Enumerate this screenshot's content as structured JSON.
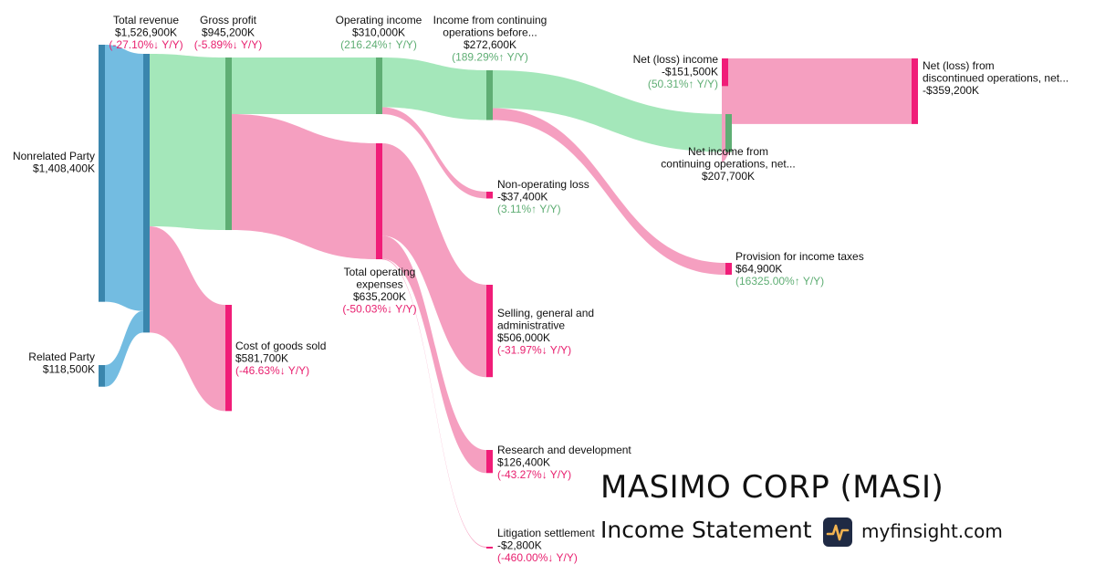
{
  "chart_data": {
    "type": "sankey",
    "nodes": [
      {
        "id": "nonrelated",
        "label_lines": [
          "Nonrelated Party"
        ],
        "value_text": "$1,408,400K",
        "value": 1408400
      },
      {
        "id": "related",
        "label_lines": [
          "Related Party"
        ],
        "value_text": "$118,500K",
        "value": 118500
      },
      {
        "id": "revenue",
        "label_lines": [
          "Total revenue"
        ],
        "value_text": "$1,526,900K",
        "change_text": "(-27.10%↓ Y/Y)",
        "value": 1526900
      },
      {
        "id": "gross",
        "label_lines": [
          "Gross profit"
        ],
        "value_text": "$945,200K",
        "change_text": "(-5.89%↓ Y/Y)",
        "value": 945200
      },
      {
        "id": "cogs",
        "label_lines": [
          "Cost of goods sold"
        ],
        "value_text": "$581,700K",
        "change_text": "(-46.63%↓ Y/Y)",
        "value": 581700
      },
      {
        "id": "opinc",
        "label_lines": [
          "Operating income"
        ],
        "value_text": "$310,000K",
        "change_text": "(216.24%↑ Y/Y)",
        "value": 310000
      },
      {
        "id": "opex",
        "label_lines": [
          "Total operating",
          "expenses"
        ],
        "value_text": "$635,200K",
        "change_text": "(-50.03%↓ Y/Y)",
        "value": 635200
      },
      {
        "id": "icont",
        "label_lines": [
          "Income from continuing",
          "operations before..."
        ],
        "value_text": "$272,600K",
        "change_text": "(189.29%↑ Y/Y)",
        "value": 272600
      },
      {
        "id": "nonop",
        "label_lines": [
          "Non-operating loss"
        ],
        "value_text": "-$37,400K",
        "change_text": "(3.11%↑ Y/Y)",
        "value": 37400
      },
      {
        "id": "sga",
        "label_lines": [
          "Selling, general and",
          "administrative"
        ],
        "value_text": "$506,000K",
        "change_text": "(-31.97%↓ Y/Y)",
        "value": 506000
      },
      {
        "id": "rnd",
        "label_lines": [
          "Research and development"
        ],
        "value_text": "$126,400K",
        "change_text": "(-43.27%↓ Y/Y)",
        "value": 126400
      },
      {
        "id": "lit",
        "label_lines": [
          "Litigation settlement"
        ],
        "value_text": "-$2,800K",
        "change_text": "(-460.00%↓ Y/Y)",
        "value": 2800
      },
      {
        "id": "netinc",
        "label_lines": [
          "Net (loss) income"
        ],
        "value_text": "-$151,500K",
        "change_text": "(50.31%↑ Y/Y)",
        "value": 151500
      },
      {
        "id": "nicont",
        "label_lines": [
          "Net income from",
          "continuing operations, net..."
        ],
        "value_text": "$207,700K",
        "value": 207700
      },
      {
        "id": "tax",
        "label_lines": [
          "Provision for income taxes"
        ],
        "value_text": "$64,900K",
        "change_text": "(16325.00%↑ Y/Y)",
        "value": 64900
      },
      {
        "id": "disc",
        "label_lines": [
          "Net (loss) from",
          "discontinued operations, net..."
        ],
        "value_text": "-$359,200K",
        "value": 359200
      }
    ],
    "links": [
      {
        "source": "nonrelated",
        "target": "revenue",
        "value": 1408400
      },
      {
        "source": "related",
        "target": "revenue",
        "value": 118500
      },
      {
        "source": "revenue",
        "target": "gross",
        "value": 945200
      },
      {
        "source": "revenue",
        "target": "cogs",
        "value": 581700
      },
      {
        "source": "gross",
        "target": "opinc",
        "value": 310000
      },
      {
        "source": "gross",
        "target": "opex",
        "value": 635200
      },
      {
        "source": "opinc",
        "target": "icont",
        "value": 272600
      },
      {
        "source": "opinc",
        "target": "nonop",
        "value": 37400
      },
      {
        "source": "opex",
        "target": "sga",
        "value": 506000
      },
      {
        "source": "opex",
        "target": "rnd",
        "value": 126400
      },
      {
        "source": "opex",
        "target": "lit",
        "value": 2800
      },
      {
        "source": "icont",
        "target": "nicont",
        "value": 207700
      },
      {
        "source": "icont",
        "target": "tax",
        "value": 64900
      },
      {
        "source": "disc",
        "target": "netinc",
        "value": 359200
      },
      {
        "source": "nicont",
        "target": "netinc",
        "value": 207700
      }
    ]
  },
  "colors": {
    "revenue_node": "#3a86ad",
    "revenue_flow": "#6cb8df",
    "profit_node": "#5fae74",
    "profit_flow": "#9fe6b6",
    "expense_node": "#f01d78",
    "expense_flow": "#f49abd",
    "negative_text": "#e8206f",
    "positive_text": "#5fae74"
  },
  "branding": {
    "company": "MASIMO CORP (MASI)",
    "statement": "Income Statement",
    "site": "myfinsight.com",
    "logo_icon": "pulse-chart-icon"
  }
}
